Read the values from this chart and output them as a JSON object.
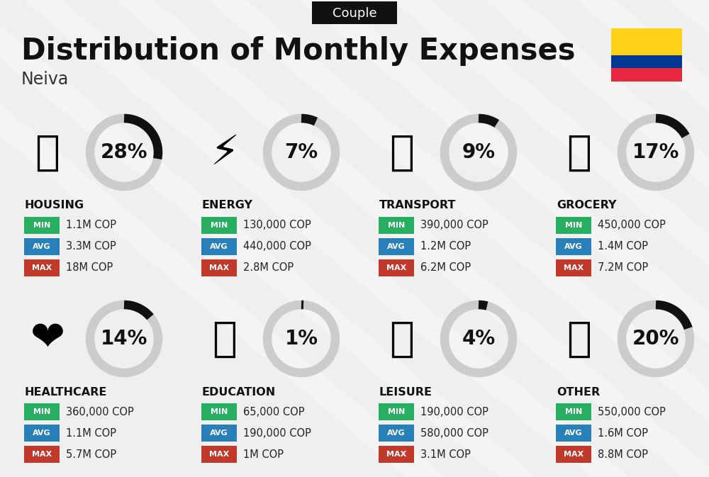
{
  "title": "Distribution of Monthly Expenses",
  "subtitle": "Couple",
  "city": "Neiva",
  "bg_color": "#efefef",
  "categories": [
    {
      "name": "HOUSING",
      "pct": 28,
      "emoji": "🏙️",
      "min": "1.1M COP",
      "avg": "3.3M COP",
      "max": "18M COP",
      "row": 0,
      "col": 0
    },
    {
      "name": "ENERGY",
      "pct": 7,
      "emoji": "⚡",
      "min": "130,000 COP",
      "avg": "440,000 COP",
      "max": "2.8M COP",
      "row": 0,
      "col": 1
    },
    {
      "name": "TRANSPORT",
      "pct": 9,
      "emoji": "🚌",
      "min": "390,000 COP",
      "avg": "1.2M COP",
      "max": "6.2M COP",
      "row": 0,
      "col": 2
    },
    {
      "name": "GROCERY",
      "pct": 17,
      "emoji": "🛒",
      "min": "450,000 COP",
      "avg": "1.4M COP",
      "max": "7.2M COP",
      "row": 0,
      "col": 3
    },
    {
      "name": "HEALTHCARE",
      "pct": 14,
      "emoji": "❤️",
      "min": "360,000 COP",
      "avg": "1.1M COP",
      "max": "5.7M COP",
      "row": 1,
      "col": 0
    },
    {
      "name": "EDUCATION",
      "pct": 1,
      "emoji": "🎓",
      "min": "65,000 COP",
      "avg": "190,000 COP",
      "max": "1M COP",
      "row": 1,
      "col": 1
    },
    {
      "name": "LEISURE",
      "pct": 4,
      "emoji": "🛍️",
      "min": "190,000 COP",
      "avg": "580,000 COP",
      "max": "3.1M COP",
      "row": 1,
      "col": 2
    },
    {
      "name": "OTHER",
      "pct": 20,
      "emoji": "💰",
      "min": "550,000 COP",
      "avg": "1.6M COP",
      "max": "8.8M COP",
      "row": 1,
      "col": 3
    }
  ],
  "color_min": "#27ae60",
  "color_avg": "#2980b9",
  "color_max": "#c0392b",
  "color_ring_fill": "#111111",
  "color_ring_bg": "#cccccc",
  "colombia_colors": [
    "#FCD116",
    "#003893",
    "#E8273F"
  ],
  "colombia_stripe_ratios": [
    0.5,
    0.25,
    0.25
  ]
}
